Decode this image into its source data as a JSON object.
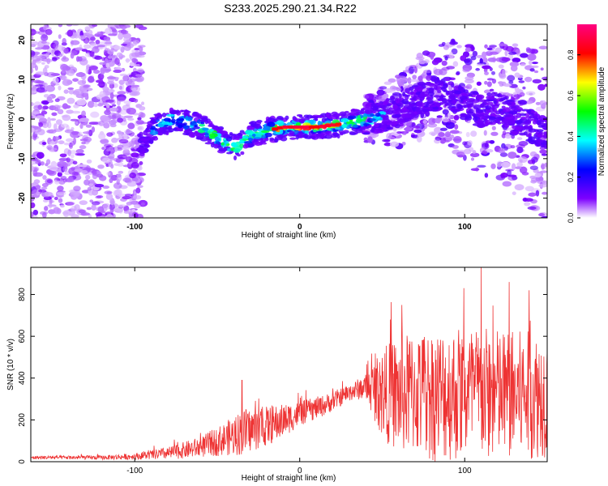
{
  "title": "S233.2025.290.21.34.R22",
  "chart_data": [
    {
      "type": "heatmap",
      "xlabel": "Height of straight line (km)",
      "ylabel": "Frequency (Hz)",
      "xlim": [
        -163,
        150
      ],
      "ylim": [
        -25,
        24
      ],
      "x_ticks": [
        -100,
        0,
        100
      ],
      "x_tick_labels": [
        "-100",
        "0",
        "100"
      ],
      "y_ticks": [
        20,
        10,
        0,
        -10,
        -20
      ],
      "y_tick_labels": [
        "20",
        "10",
        "0",
        "-10",
        "-20"
      ],
      "ridge": {
        "description_points_km_hz": [
          [
            -95,
            -6
          ],
          [
            -85,
            -1
          ],
          [
            -75,
            0
          ],
          [
            -60,
            -2
          ],
          [
            -45,
            -6
          ],
          [
            -38,
            -7
          ],
          [
            -30,
            -4
          ],
          [
            -20,
            -3
          ],
          [
            -10,
            -2
          ],
          [
            0,
            -2
          ],
          [
            10,
            -2
          ],
          [
            20,
            -1.5
          ],
          [
            30,
            -1
          ],
          [
            40,
            0
          ],
          [
            50,
            1
          ],
          [
            60,
            2
          ],
          [
            70,
            5
          ],
          [
            80,
            6
          ],
          [
            90,
            7
          ],
          [
            100,
            4
          ],
          [
            110,
            2
          ],
          [
            120,
            3
          ],
          [
            130,
            0
          ],
          [
            140,
            -2
          ],
          [
            150,
            -4
          ]
        ],
        "peak_amplitude_range_km": [
          -15,
          25
        ]
      },
      "colorbar": {
        "label": "Normalized spectral amplitude",
        "range": [
          0.0,
          0.95
        ],
        "ticks": [
          0.0,
          0.2,
          0.4,
          0.6,
          0.8
        ],
        "tick_labels": [
          "0.0",
          "0.2",
          "0.4",
          "0.6",
          "0.8"
        ],
        "colors": [
          "#ffffff",
          "#7d00ff",
          "#0000ff",
          "#00ffff",
          "#00ff00",
          "#ffff00",
          "#ff0000",
          "#ff0080"
        ]
      }
    },
    {
      "type": "line",
      "xlabel": "Height of straight line (km)",
      "ylabel": "SNR (10 * v/v)",
      "xlim": [
        -163,
        150
      ],
      "ylim": [
        0,
        930
      ],
      "x_ticks": [
        -100,
        0,
        100
      ],
      "x_tick_labels": [
        "-100",
        "0",
        "100"
      ],
      "y_ticks": [
        0,
        200,
        400,
        600,
        800
      ],
      "y_tick_labels": [
        "0",
        "200",
        "400",
        "600",
        "800"
      ],
      "series": [
        {
          "name": "SNR",
          "color": "#ee3333",
          "envelope_x": [
            -163,
            -120,
            -100,
            -80,
            -60,
            -45,
            -35,
            -25,
            -15,
            0,
            15,
            30,
            40,
            50,
            60,
            70,
            80,
            100,
            120,
            150
          ],
          "envelope_mean": [
            20,
            20,
            25,
            40,
            70,
            110,
            140,
            160,
            180,
            230,
            270,
            330,
            360,
            330,
            320,
            330,
            320,
            330,
            320,
            320
          ],
          "envelope_spread": [
            8,
            10,
            15,
            30,
            50,
            80,
            110,
            100,
            90,
            60,
            50,
            40,
            60,
            220,
            280,
            300,
            320,
            330,
            320,
            300
          ],
          "peaks_x": [
            -35,
            55,
            62,
            110,
            127,
            139
          ],
          "peaks_y": [
            390,
            680,
            750,
            930,
            860,
            820
          ]
        }
      ]
    }
  ]
}
